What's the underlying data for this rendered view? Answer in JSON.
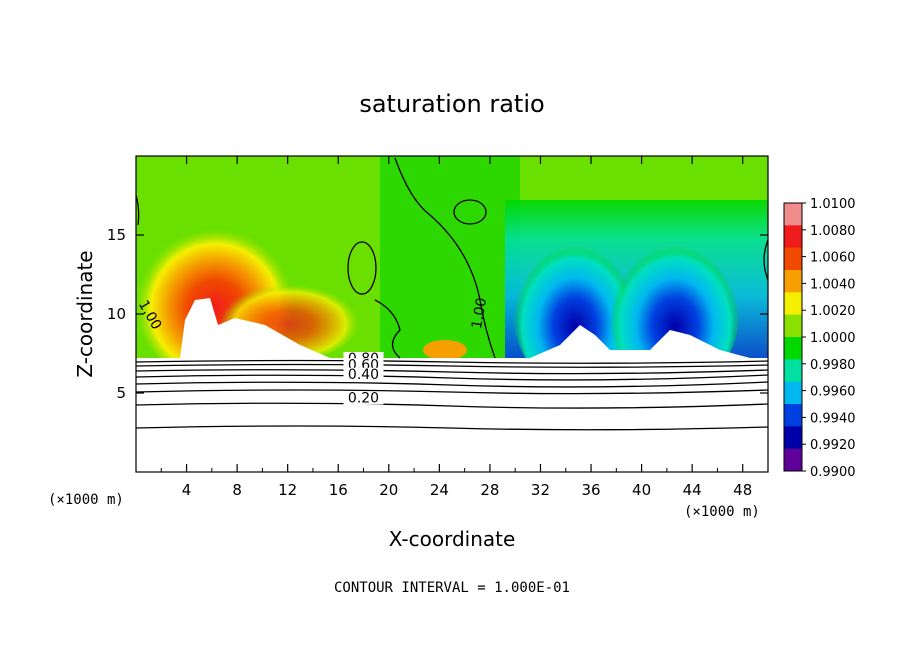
{
  "chart_data": {
    "type": "heatmap",
    "title": "saturation ratio",
    "xlabel": "X-coordinate",
    "ylabel": "Z-coordinate",
    "x_unit_left": "(×1000 m)",
    "x_unit_right": "(×1000 m)",
    "xlim": [
      0,
      50
    ],
    "ylim": [
      0,
      20
    ],
    "x_ticks": [
      "4",
      "8",
      "12",
      "16",
      "20",
      "24",
      "28",
      "32",
      "36",
      "40",
      "44",
      "48"
    ],
    "y_ticks": [
      "5",
      "10",
      "15"
    ],
    "footer": "CONTOUR INTERVAL = 1.000E-01",
    "colorbar": {
      "labels": [
        "1.0100",
        "1.0080",
        "1.0060",
        "1.0040",
        "1.0020",
        "1.0000",
        "0.9980",
        "0.9960",
        "0.9940",
        "0.9920",
        "0.9900"
      ],
      "colors": [
        "#f08c8c",
        "#f01c1c",
        "#f04a00",
        "#f5a000",
        "#f5f000",
        "#8ce000",
        "#00d800",
        "#00e0a0",
        "#00b8f0",
        "#0040e0",
        "#0000a8",
        "#60009a"
      ]
    },
    "contour_labels": [
      {
        "text": "1.00",
        "x": 0.8,
        "z": 9.8,
        "rot": 60
      },
      {
        "text": "1.00",
        "x": 27.5,
        "z": 10.0,
        "rot": -80
      },
      {
        "text": "0.80",
        "x": 18.0,
        "z": 6.9
      },
      {
        "text": "0.60",
        "x": 18.0,
        "z": 6.5
      },
      {
        "text": "0.40",
        "x": 18.0,
        "z": 5.9
      },
      {
        "text": "0.20",
        "x": 18.0,
        "z": 4.4
      }
    ],
    "cloud_base_z": 7.3
  }
}
